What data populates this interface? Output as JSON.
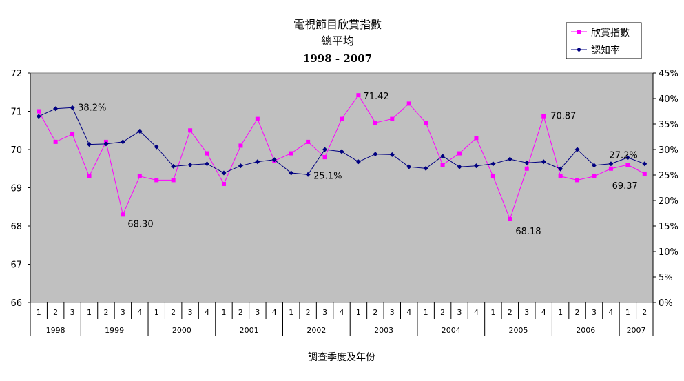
{
  "chart_data": {
    "type": "line",
    "title": "電視節目欣賞指數",
    "subtitle": "總平均",
    "period": "1998 - 2007",
    "xlabel": "調查季度及年份",
    "left_axis": {
      "min": 66,
      "max": 72,
      "ticks": [
        "66",
        "67",
        "68",
        "69",
        "70",
        "71",
        "72"
      ]
    },
    "right_axis": {
      "min": 0,
      "max": 45,
      "ticks": [
        "0%",
        "5%",
        "10%",
        "15%",
        "20%",
        "25%",
        "30%",
        "35%",
        "40%",
        "45%"
      ]
    },
    "quarters": [
      "1",
      "2",
      "3",
      "1",
      "2",
      "3",
      "4",
      "1",
      "2",
      "3",
      "4",
      "1",
      "2",
      "3",
      "4",
      "1",
      "2",
      "3",
      "4",
      "1",
      "2",
      "3",
      "4",
      "1",
      "2",
      "3",
      "4",
      "1",
      "2",
      "3",
      "4",
      "1",
      "2",
      "3",
      "4",
      "1",
      "2"
    ],
    "years": [
      {
        "label": "1998",
        "count": 3
      },
      {
        "label": "1999",
        "count": 4
      },
      {
        "label": "2000",
        "count": 4
      },
      {
        "label": "2001",
        "count": 4
      },
      {
        "label": "2002",
        "count": 4
      },
      {
        "label": "2003",
        "count": 4
      },
      {
        "label": "2004",
        "count": 4
      },
      {
        "label": "2005",
        "count": 4
      },
      {
        "label": "2006",
        "count": 4
      },
      {
        "label": "2007",
        "count": 2
      }
    ],
    "series": [
      {
        "name": "欣賞指數",
        "axis": "left",
        "color": "#ff00ff",
        "marker": "square",
        "values": [
          71.0,
          70.2,
          70.4,
          69.3,
          70.2,
          68.3,
          69.3,
          69.2,
          69.2,
          70.5,
          69.9,
          69.1,
          70.1,
          70.8,
          69.7,
          69.9,
          70.2,
          69.8,
          70.8,
          71.42,
          70.7,
          70.8,
          71.2,
          70.7,
          69.6,
          69.9,
          70.3,
          69.3,
          68.18,
          69.5,
          70.87,
          69.3,
          69.2,
          69.3,
          69.5,
          69.6,
          69.37
        ]
      },
      {
        "name": "認知率",
        "axis": "right",
        "color": "#000080",
        "marker": "diamond",
        "values": [
          36.5,
          38.0,
          38.2,
          31.0,
          31.1,
          31.5,
          33.6,
          30.5,
          26.7,
          27.0,
          27.2,
          25.4,
          26.8,
          27.6,
          28.0,
          25.4,
          25.1,
          30.0,
          29.6,
          27.6,
          29.1,
          29.0,
          26.6,
          26.3,
          28.7,
          26.6,
          26.8,
          27.2,
          28.1,
          27.4,
          27.6,
          26.2,
          30.0,
          26.9,
          27.2,
          28.4,
          27.2
        ]
      }
    ],
    "annotations": [
      {
        "series": 0,
        "index": 5,
        "text": "68.30"
      },
      {
        "series": 0,
        "index": 19,
        "text": "71.42"
      },
      {
        "series": 0,
        "index": 28,
        "text": "68.18"
      },
      {
        "series": 0,
        "index": 30,
        "text": "70.87"
      },
      {
        "series": 0,
        "index": 36,
        "text": "69.37"
      },
      {
        "series": 1,
        "index": 2,
        "text": "38.2%"
      },
      {
        "series": 1,
        "index": 16,
        "text": "25.1%"
      },
      {
        "series": 1,
        "index": 36,
        "text": "27.2%"
      }
    ],
    "grid": false,
    "legend_position": "top-right",
    "plot_background": "#c0c0c0"
  }
}
